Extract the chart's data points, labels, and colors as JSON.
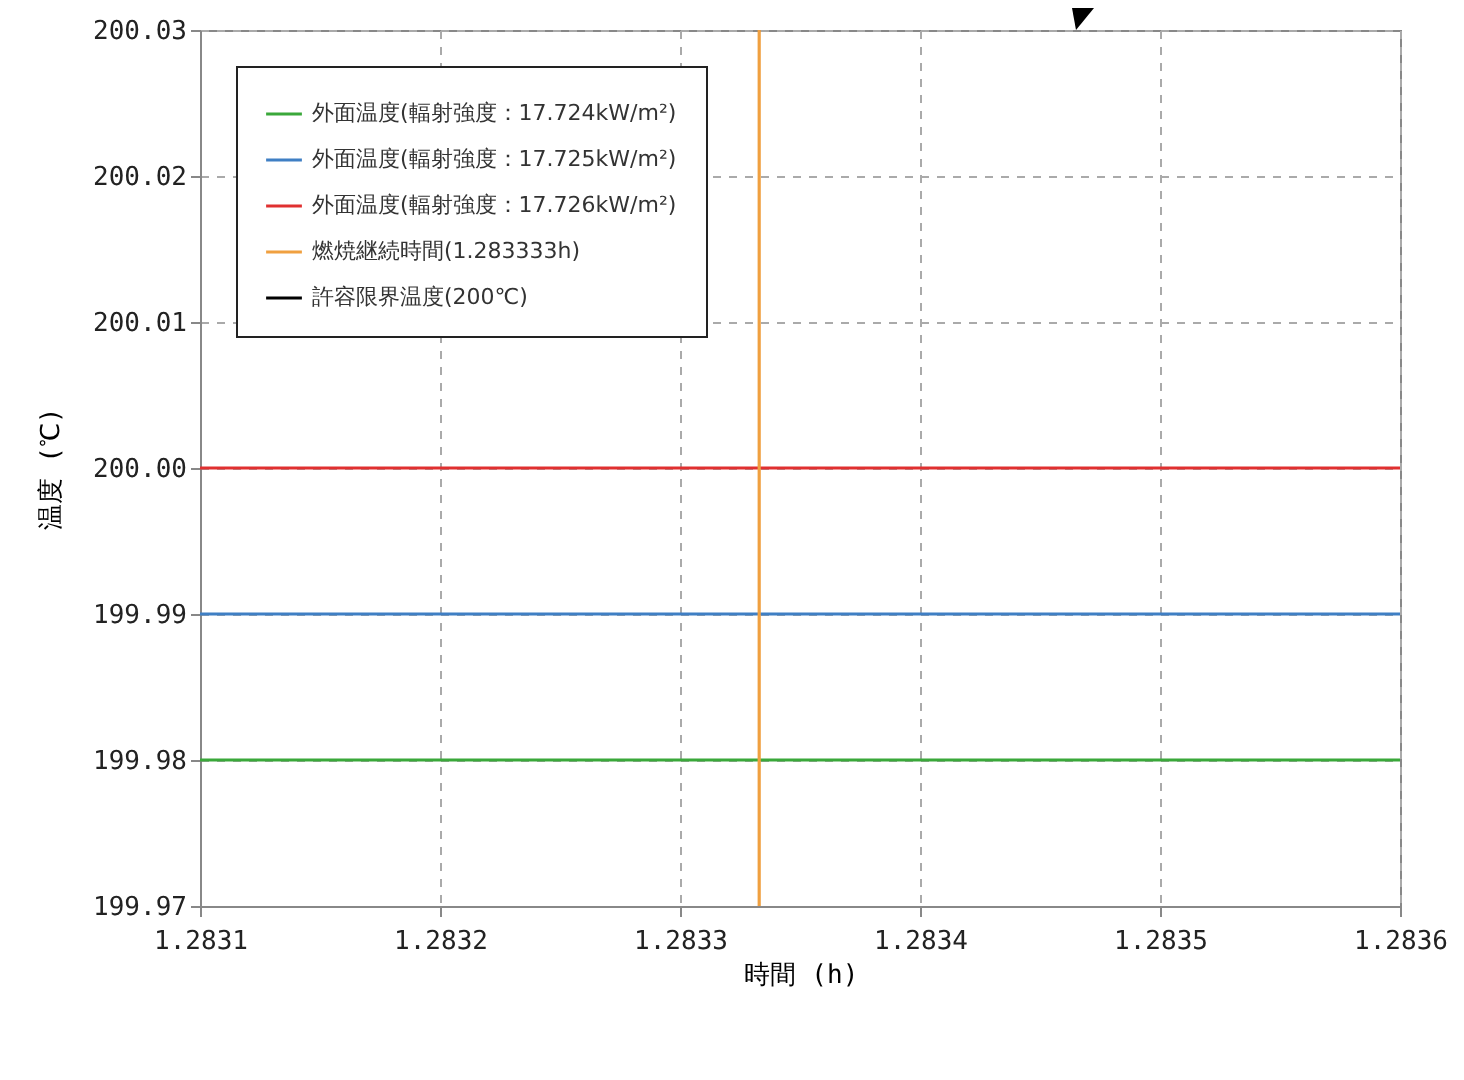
{
  "chart_data": {
    "type": "line",
    "xlabel": "時間 (h)",
    "ylabel": "温度 (℃)",
    "x": [
      1.2831,
      1.2836
    ],
    "series": [
      {
        "name": "外面温度(輻射強度：17.724kW/m²)",
        "color": "#3aa83a",
        "values": [
          199.98,
          199.98
        ]
      },
      {
        "name": "外面温度(輻射強度：17.725kW/m²)",
        "color": "#3f7fc4",
        "values": [
          199.99,
          199.99
        ]
      },
      {
        "name": "外面温度(輻射強度：17.726kW/m²)",
        "color": "#e03030",
        "values": [
          200.0,
          200.0
        ]
      },
      {
        "name": "燃焼継続時間(1.283333h)",
        "color": "#f0a040",
        "x": [
          1.283333,
          1.283333
        ],
        "values": [
          199.97,
          200.03
        ]
      },
      {
        "name": "許容限界温度(200℃)",
        "color": "#000000",
        "values": [
          null,
          null
        ]
      }
    ],
    "xlim": [
      1.2831,
      1.2836
    ],
    "xticks": [
      1.2831,
      1.2832,
      1.2833,
      1.2834,
      1.2835,
      1.2836
    ],
    "ylim": [
      199.97,
      200.03
    ],
    "yticks": [
      199.97,
      199.98,
      199.99,
      {
        "value": 200.0,
        "label": "200.00"
      },
      200.01,
      200.02,
      200.03
    ],
    "grid": true,
    "legend": "top left",
    "line_style": "solid",
    "marker": "none"
  }
}
